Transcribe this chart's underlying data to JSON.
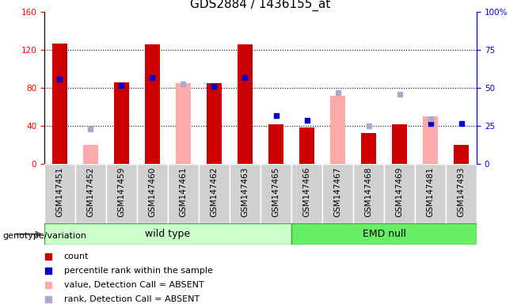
{
  "title": "GDS2884 / 1436155_at",
  "samples": [
    "GSM147451",
    "GSM147452",
    "GSM147459",
    "GSM147460",
    "GSM147461",
    "GSM147462",
    "GSM147463",
    "GSM147465",
    "GSM147466",
    "GSM147467",
    "GSM147468",
    "GSM147469",
    "GSM147481",
    "GSM147493"
  ],
  "wt_count": 8,
  "emd_count": 6,
  "count": [
    127,
    null,
    86,
    126,
    null,
    85,
    126,
    42,
    39,
    null,
    33,
    42,
    null,
    20
  ],
  "percentile_rank": [
    56,
    null,
    52,
    57,
    null,
    51,
    57,
    32,
    29,
    null,
    null,
    null,
    27,
    27
  ],
  "absent_value": [
    null,
    20,
    null,
    null,
    85,
    null,
    null,
    null,
    null,
    72,
    null,
    42,
    50,
    null
  ],
  "absent_rank": [
    null,
    23,
    null,
    null,
    53,
    null,
    null,
    null,
    null,
    47,
    25,
    46,
    30,
    null
  ],
  "left_ylim": [
    0,
    160
  ],
  "right_ylim": [
    0,
    100
  ],
  "left_yticks": [
    0,
    40,
    80,
    120,
    160
  ],
  "right_yticks": [
    0,
    25,
    50,
    75,
    100
  ],
  "right_yticklabels": [
    "0",
    "25",
    "50",
    "75",
    "100%"
  ],
  "count_color": "#cc0000",
  "rank_color": "#0000cc",
  "absent_value_color": "#ffaaaa",
  "absent_rank_color": "#aaaacc",
  "wt_color": "#ccffcc",
  "emd_color": "#66ee66",
  "wt_label": "wild type",
  "emd_label": "EMD null",
  "legend_items": [
    {
      "label": "count",
      "color": "#cc0000"
    },
    {
      "label": "percentile rank within the sample",
      "color": "#0000cc"
    },
    {
      "label": "value, Detection Call = ABSENT",
      "color": "#ffaaaa"
    },
    {
      "label": "rank, Detection Call = ABSENT",
      "color": "#aaaacc"
    }
  ],
  "genotype_label": "genotype/variation",
  "title_fontsize": 11,
  "tick_fontsize": 7.5,
  "legend_fontsize": 8,
  "geno_fontsize": 9,
  "figsize": [
    6.58,
    3.84
  ],
  "dpi": 100
}
